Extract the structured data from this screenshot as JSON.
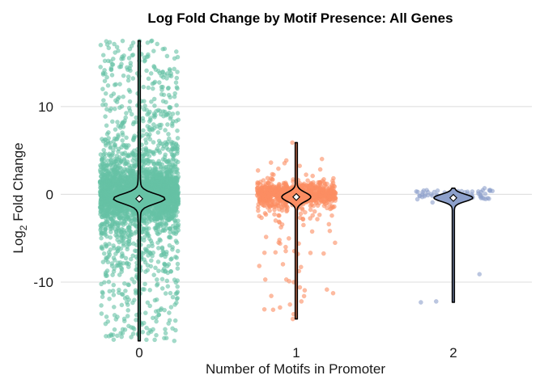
{
  "chart_data": {
    "type": "violin-jitter",
    "title": "Log Fold Change by Motif Presence: All Genes",
    "xlabel": "Number of Motifs in Promoter",
    "ylabel_prefix": "Log",
    "ylabel_subscript": "2",
    "ylabel_suffix": " Fold Change",
    "categories": [
      "0",
      "1",
      "2"
    ],
    "ylim": [
      -17,
      18
    ],
    "yticks": [
      {
        "value": 10,
        "label": "10"
      },
      {
        "value": 0,
        "label": "0"
      },
      {
        "value": -10,
        "label": "-10"
      }
    ],
    "grid": true,
    "legend": "none",
    "groups": [
      {
        "category": "0",
        "color": "#66c2a5",
        "n_points": 3200,
        "min": -16.7,
        "max": 17.5,
        "mean": -0.5,
        "spread": "wide"
      },
      {
        "category": "1",
        "color": "#fc8d62",
        "n_points": 800,
        "min": -14.2,
        "max": 5.9,
        "mean": -0.3,
        "spread": "medium"
      },
      {
        "category": "2",
        "color": "#8da0cb",
        "n_points": 60,
        "min": -12.3,
        "max": 0.7,
        "mean": -0.4,
        "spread": "narrow"
      }
    ]
  }
}
